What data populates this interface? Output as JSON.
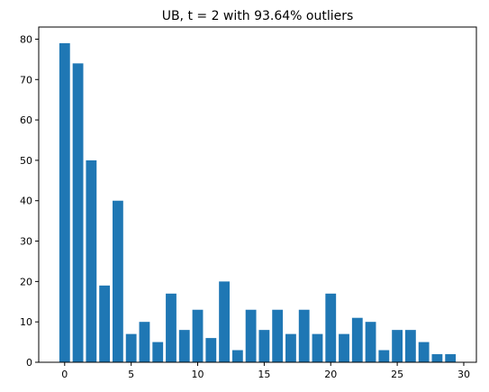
{
  "chart_data": {
    "type": "bar",
    "title": "UB,  t = 2 with 93.64% outliers",
    "xlabel": "",
    "ylabel": "",
    "x": [
      0,
      1,
      2,
      3,
      4,
      5,
      6,
      7,
      8,
      9,
      10,
      11,
      12,
      13,
      14,
      15,
      16,
      17,
      18,
      19,
      20,
      21,
      22,
      23,
      24,
      25,
      26,
      27,
      28,
      29
    ],
    "values": [
      79,
      74,
      50,
      19,
      40,
      7,
      10,
      5,
      17,
      8,
      13,
      6,
      20,
      3,
      13,
      8,
      13,
      7,
      13,
      7,
      17,
      7,
      11,
      10,
      3,
      8,
      8,
      5,
      2,
      2
    ],
    "xlim": [
      -1.95,
      30.95
    ],
    "ylim": [
      0,
      83
    ],
    "xticks": [
      0,
      5,
      10,
      15,
      20,
      25,
      30
    ],
    "yticks": [
      0,
      10,
      20,
      30,
      40,
      50,
      60,
      70,
      80
    ],
    "bar_color": "#1f77b4",
    "grid": false,
    "legend": "none"
  }
}
